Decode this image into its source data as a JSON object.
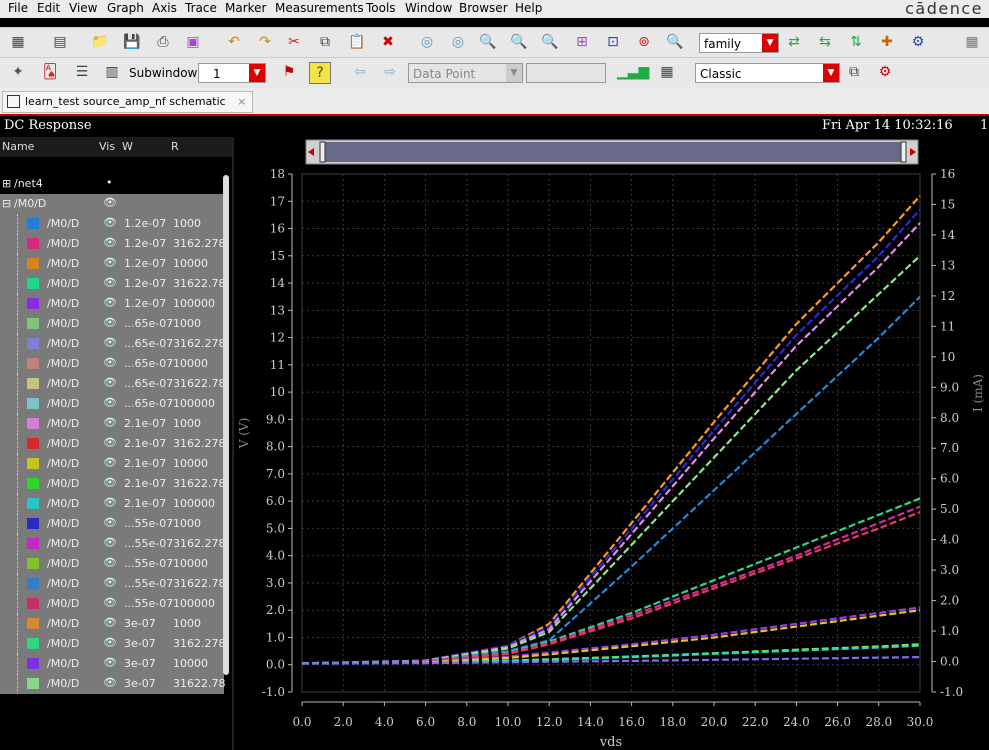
{
  "menu": {
    "items": [
      "File",
      "Edit",
      "View",
      "Graph",
      "Axis",
      "Trace",
      "Marker",
      "Measurements",
      "Tools",
      "Window",
      "Browser",
      "Help"
    ],
    "brand": "cādence"
  },
  "toolbar1": {
    "family_select": "family"
  },
  "toolbar2": {
    "subwindows_label": "Subwindows:",
    "subwindows_value": "1",
    "data_point_select": "Data Point",
    "style_select": "Classic"
  },
  "tab": {
    "label": "learn_test source_amp_nf schematic",
    "close": "×"
  },
  "window": {
    "title": "DC Response",
    "datetime": "Fri Apr 14 10:32:16",
    "right_marker": "1"
  },
  "browser": {
    "headers": {
      "name": "Name",
      "vis": "Vis",
      "w": "W",
      "r": "R"
    },
    "group_net4": "/net4",
    "group_m0d": "/M0/D",
    "signals": [
      {
        "name": "/M0/D",
        "w": "1.2e-07",
        "r": "1000",
        "color": "#1f7fd6"
      },
      {
        "name": "/M0/D",
        "w": "1.2e-07",
        "r": "3162.278",
        "color": "#d6297c"
      },
      {
        "name": "/M0/D",
        "w": "1.2e-07",
        "r": "10000",
        "color": "#d6841f"
      },
      {
        "name": "/M0/D",
        "w": "1.2e-07",
        "r": "31622.78",
        "color": "#1fd68a"
      },
      {
        "name": "/M0/D",
        "w": "1.2e-07",
        "r": "100000",
        "color": "#8a2be2"
      },
      {
        "name": "/M0/D",
        "w": "...65e-07",
        "r": "1000",
        "color": "#7fc47f"
      },
      {
        "name": "/M0/D",
        "w": "...65e-07",
        "r": "3162.278",
        "color": "#7f7fd6"
      },
      {
        "name": "/M0/D",
        "w": "...65e-07",
        "r": "10000",
        "color": "#c47f7f"
      },
      {
        "name": "/M0/D",
        "w": "...65e-07",
        "r": "31622.78",
        "color": "#c4c47f"
      },
      {
        "name": "/M0/D",
        "w": "...65e-07",
        "r": "100000",
        "color": "#7fc4c4"
      },
      {
        "name": "/M0/D",
        "w": "2.1e-07",
        "r": "1000",
        "color": "#d67fd6"
      },
      {
        "name": "/M0/D",
        "w": "2.1e-07",
        "r": "3162.278",
        "color": "#d62929"
      },
      {
        "name": "/M0/D",
        "w": "2.1e-07",
        "r": "10000",
        "color": "#c4c41f"
      },
      {
        "name": "/M0/D",
        "w": "2.1e-07",
        "r": "31622.78",
        "color": "#29d629"
      },
      {
        "name": "/M0/D",
        "w": "2.1e-07",
        "r": "100000",
        "color": "#29c4c4"
      },
      {
        "name": "/M0/D",
        "w": "...55e-07",
        "r": "1000",
        "color": "#2929c4"
      },
      {
        "name": "/M0/D",
        "w": "...55e-07",
        "r": "3162.278",
        "color": "#c429c4"
      },
      {
        "name": "/M0/D",
        "w": "...55e-07",
        "r": "10000",
        "color": "#7fc429"
      },
      {
        "name": "/M0/D",
        "w": "...55e-07",
        "r": "31622.78",
        "color": "#2f7fc4"
      },
      {
        "name": "/M0/D",
        "w": "...55e-07",
        "r": "100000",
        "color": "#c42f6a"
      },
      {
        "name": "/M0/D",
        "w": "3e-07",
        "r": "1000",
        "color": "#d68a2f"
      },
      {
        "name": "/M0/D",
        "w": "3e-07",
        "r": "3162.278",
        "color": "#2fd67f"
      },
      {
        "name": "/M0/D",
        "w": "3e-07",
        "r": "10000",
        "color": "#7f2fe2"
      },
      {
        "name": "/M0/D",
        "w": "3e-07",
        "r": "31622.78",
        "color": "#8ad68a"
      }
    ]
  },
  "chart_data": {
    "type": "line",
    "xlabel": "vds",
    "ylabel_left": "V (V)",
    "ylabel_right": "I (mA)",
    "xlim": [
      0,
      30
    ],
    "ylim_left": [
      -1,
      18
    ],
    "ylim_right": [
      -1,
      16
    ],
    "x_ticks": [
      "0.0",
      "2.0",
      "4.0",
      "6.0",
      "8.0",
      "10.0",
      "12.0",
      "14.0",
      "16.0",
      "18.0",
      "20.0",
      "22.0",
      "24.0",
      "26.0",
      "28.0",
      "30.0"
    ],
    "y_left_ticks": [
      "-1.0",
      "0.0",
      "1.0",
      "2.0",
      "3.0",
      "4.0",
      "5.0",
      "6.0",
      "7.0",
      "8.0",
      "9.0",
      "10",
      "11",
      "12",
      "13",
      "14",
      "15",
      "16",
      "17",
      "18"
    ],
    "y_right_ticks": [
      "-1.0",
      "0.0",
      "1.0",
      "2.0",
      "3.0",
      "4.0",
      "5.0",
      "6.0",
      "7.0",
      "8.0",
      "9.0",
      "10",
      "11",
      "12",
      "13",
      "14",
      "15",
      "16"
    ],
    "grid": true,
    "series": [
      {
        "color": "#ff9a1f",
        "x": [
          0,
          6,
          10,
          12,
          16,
          20,
          24,
          28,
          30
        ],
        "y": [
          0.05,
          0.15,
          0.7,
          1.5,
          5.2,
          8.9,
          12.5,
          15.5,
          17.2
        ]
      },
      {
        "color": "#2a2ad6",
        "x": [
          0,
          6,
          10,
          12,
          16,
          20,
          24,
          28,
          30
        ],
        "y": [
          0.05,
          0.15,
          0.7,
          1.4,
          5.0,
          8.6,
          12.1,
          15.0,
          16.7
        ]
      },
      {
        "color": "#e88ae8",
        "x": [
          0,
          6,
          10,
          12,
          16,
          20,
          24,
          28,
          30
        ],
        "y": [
          0.05,
          0.15,
          0.65,
          1.3,
          4.8,
          8.3,
          11.7,
          14.6,
          16.2
        ]
      },
      {
        "color": "#8ae88a",
        "x": [
          0,
          6,
          10,
          12,
          16,
          20,
          24,
          28,
          30
        ],
        "y": [
          0.05,
          0.14,
          0.6,
          1.2,
          4.4,
          7.6,
          10.8,
          13.6,
          15.0
        ]
      },
      {
        "color": "#1f8adf",
        "x": [
          0,
          6,
          10,
          12,
          16,
          20,
          24,
          28,
          30
        ],
        "y": [
          0.05,
          0.13,
          0.5,
          0.9,
          3.6,
          6.4,
          9.2,
          12.0,
          13.5
        ]
      },
      {
        "color": "#2fd68a",
        "x": [
          0,
          6,
          10,
          12,
          16,
          20,
          24,
          28,
          30
        ],
        "y": [
          0.05,
          0.12,
          0.45,
          0.85,
          1.9,
          3.1,
          4.3,
          5.5,
          6.1
        ]
      },
      {
        "color": "#d629a0",
        "x": [
          0,
          6,
          10,
          12,
          16,
          20,
          24,
          28,
          30
        ],
        "y": [
          0.05,
          0.12,
          0.42,
          0.8,
          1.8,
          2.9,
          4.0,
          5.2,
          5.8
        ]
      },
      {
        "color": "#e83a5a",
        "x": [
          0,
          6,
          10,
          12,
          16,
          20,
          24,
          28,
          30
        ],
        "y": [
          0.05,
          0.11,
          0.4,
          0.75,
          1.7,
          2.8,
          3.9,
          5.0,
          5.6
        ]
      },
      {
        "color": "#9a3ae8",
        "x": [
          0,
          6,
          10,
          12,
          16,
          20,
          24,
          28,
          30
        ],
        "y": [
          0.05,
          0.1,
          0.3,
          0.45,
          0.75,
          1.1,
          1.5,
          1.9,
          2.1
        ]
      },
      {
        "color": "#e8c41f",
        "x": [
          0,
          6,
          10,
          12,
          16,
          20,
          24,
          28,
          30
        ],
        "y": [
          0.05,
          0.09,
          0.25,
          0.38,
          0.68,
          1.0,
          1.4,
          1.8,
          2.0
        ]
      },
      {
        "color": "#9ae83a",
        "x": [
          0,
          6,
          10,
          12,
          16,
          20,
          24,
          28,
          30
        ],
        "y": [
          0.05,
          0.08,
          0.15,
          0.2,
          0.3,
          0.42,
          0.55,
          0.67,
          0.75
        ]
      },
      {
        "color": "#2ad6c4",
        "x": [
          0,
          6,
          10,
          12,
          16,
          20,
          24,
          28,
          30
        ],
        "y": [
          0.05,
          0.08,
          0.14,
          0.18,
          0.28,
          0.4,
          0.52,
          0.63,
          0.7
        ]
      },
      {
        "color": "#8a6ae8",
        "x": [
          0,
          6,
          10,
          12,
          16,
          20,
          24,
          28,
          30
        ],
        "y": [
          0.04,
          0.06,
          0.09,
          0.11,
          0.14,
          0.18,
          0.22,
          0.26,
          0.28
        ]
      }
    ]
  }
}
